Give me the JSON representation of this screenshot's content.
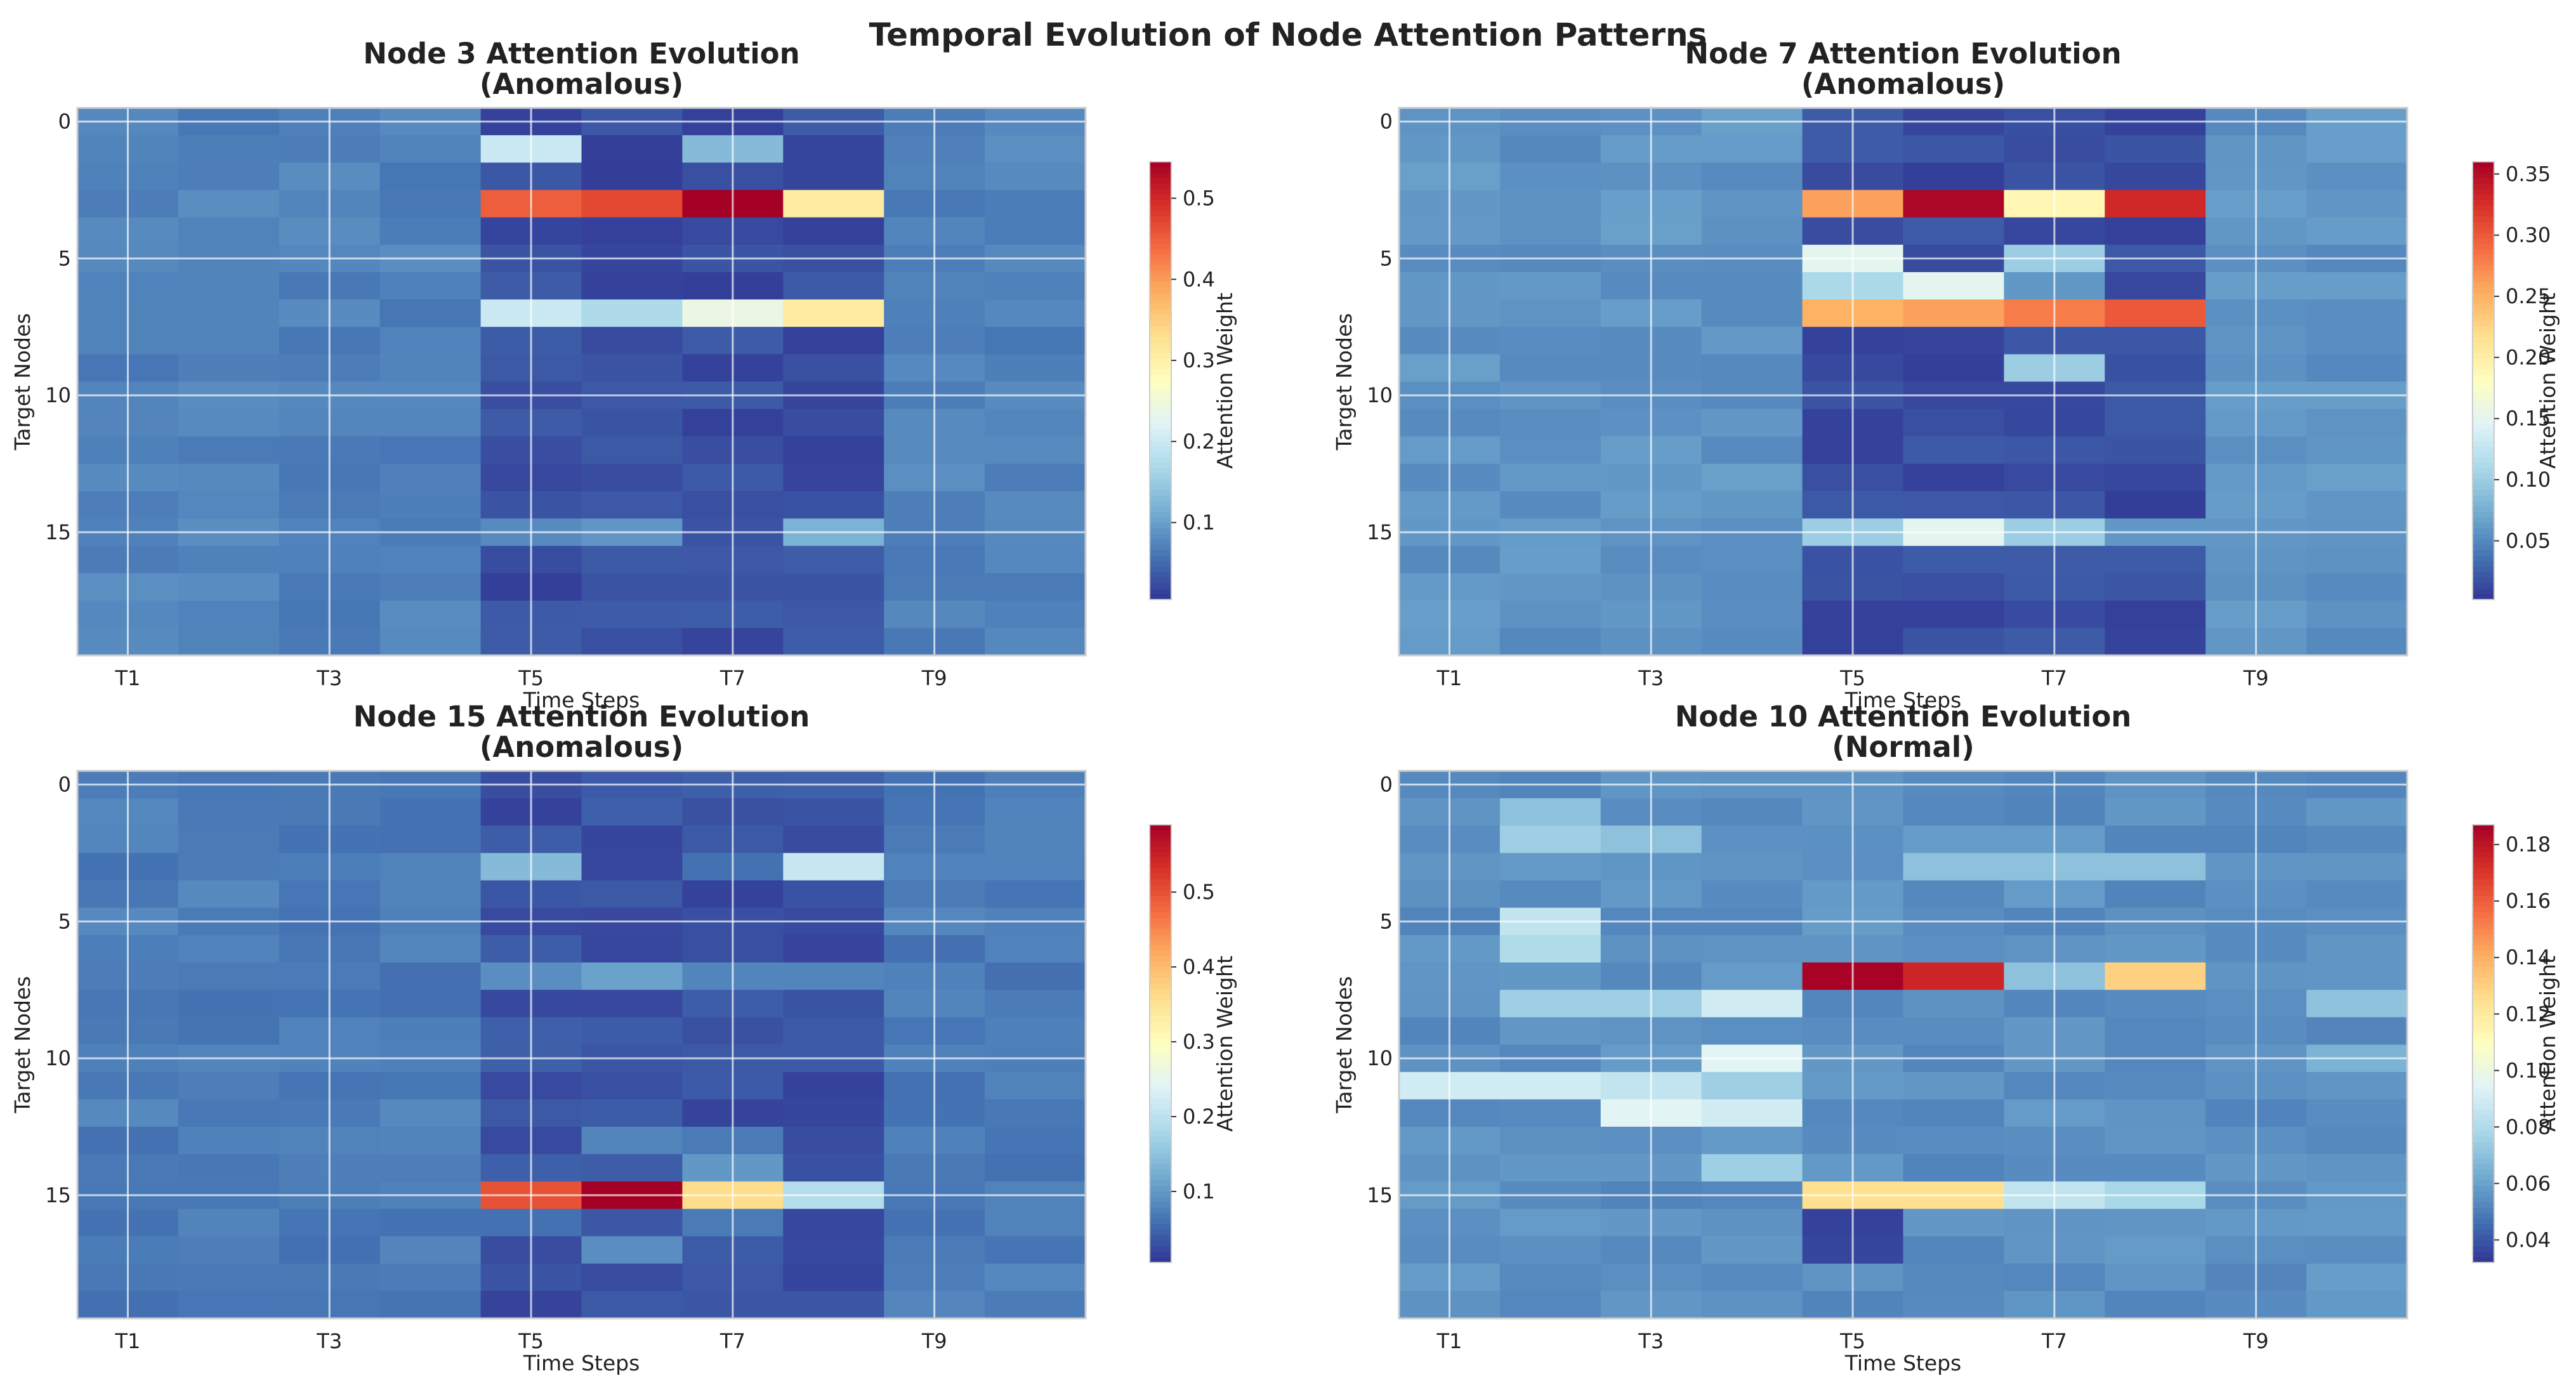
{
  "figure": {
    "title": "Temporal Evolution of Node Attention Patterns"
  },
  "chart_data": [
    {
      "type": "heatmap",
      "title": "Node 3 Attention Evolution",
      "subtitle": "(Anomalous)",
      "xlabel": "Time Steps",
      "ylabel": "Target Nodes",
      "colorbar_label": "Attention Weight",
      "x_ticks": [
        "T1",
        "T3",
        "T5",
        "T7",
        "T9"
      ],
      "y_ticks": [
        "0",
        "5",
        "10",
        "15"
      ],
      "colorbar_ticks": [
        0.1,
        0.2,
        0.3,
        0.4,
        0.5
      ],
      "colorbar_tick_labels": [
        "0.1",
        "0.2",
        "0.3",
        "0.4",
        "0.5"
      ],
      "vmin": 0.005,
      "vmax": 0.545,
      "columns": 10,
      "rows": 20,
      "base": 0.072,
      "active_columns": [
        4,
        5,
        6,
        7
      ],
      "active_base": 0.025,
      "hot_cells": [
        {
          "row": 1,
          "col": 4,
          "value": 0.2
        },
        {
          "row": 1,
          "col": 6,
          "value": 0.13
        },
        {
          "row": 3,
          "col": 4,
          "value": 0.45
        },
        {
          "row": 3,
          "col": 5,
          "value": 0.47
        },
        {
          "row": 3,
          "col": 6,
          "value": 0.545
        },
        {
          "row": 3,
          "col": 7,
          "value": 0.31
        },
        {
          "row": 7,
          "col": 4,
          "value": 0.2
        },
        {
          "row": 7,
          "col": 5,
          "value": 0.17
        },
        {
          "row": 7,
          "col": 6,
          "value": 0.24
        },
        {
          "row": 7,
          "col": 7,
          "value": 0.31
        },
        {
          "row": 15,
          "col": 4,
          "value": 0.08
        },
        {
          "row": 15,
          "col": 5,
          "value": 0.09
        },
        {
          "row": 15,
          "col": 7,
          "value": 0.12
        }
      ]
    },
    {
      "type": "heatmap",
      "title": "Node 7 Attention Evolution",
      "subtitle": "(Anomalous)",
      "xlabel": "Time Steps",
      "ylabel": "Target Nodes",
      "colorbar_label": "Attention Weight",
      "x_ticks": [
        "T1",
        "T3",
        "T5",
        "T7",
        "T9"
      ],
      "y_ticks": [
        "0",
        "5",
        "10",
        "15"
      ],
      "colorbar_ticks": [
        0.05,
        0.1,
        0.15,
        0.2,
        0.25,
        0.3,
        0.35
      ],
      "colorbar_tick_labels": [
        "0.05",
        "0.10",
        "0.15",
        "0.20",
        "0.25",
        "0.30",
        "0.35"
      ],
      "vmin": 0.002,
      "vmax": 0.36,
      "columns": 10,
      "rows": 20,
      "base": 0.058,
      "active_columns": [
        4,
        5,
        6,
        7
      ],
      "active_base": 0.015,
      "hot_cells": [
        {
          "row": 3,
          "col": 4,
          "value": 0.26
        },
        {
          "row": 3,
          "col": 5,
          "value": 0.355
        },
        {
          "row": 3,
          "col": 6,
          "value": 0.19
        },
        {
          "row": 3,
          "col": 7,
          "value": 0.33
        },
        {
          "row": 5,
          "col": 4,
          "value": 0.15
        },
        {
          "row": 5,
          "col": 6,
          "value": 0.1
        },
        {
          "row": 6,
          "col": 4,
          "value": 0.11
        },
        {
          "row": 6,
          "col": 5,
          "value": 0.15
        },
        {
          "row": 6,
          "col": 6,
          "value": 0.06
        },
        {
          "row": 7,
          "col": 4,
          "value": 0.25
        },
        {
          "row": 7,
          "col": 5,
          "value": 0.26
        },
        {
          "row": 7,
          "col": 6,
          "value": 0.28
        },
        {
          "row": 7,
          "col": 7,
          "value": 0.3
        },
        {
          "row": 9,
          "col": 6,
          "value": 0.1
        },
        {
          "row": 15,
          "col": 4,
          "value": 0.1
        },
        {
          "row": 15,
          "col": 5,
          "value": 0.15
        },
        {
          "row": 15,
          "col": 6,
          "value": 0.1
        },
        {
          "row": 15,
          "col": 7,
          "value": 0.06
        }
      ]
    },
    {
      "type": "heatmap",
      "title": "Node 15 Attention Evolution",
      "subtitle": "(Anomalous)",
      "xlabel": "Time Steps",
      "ylabel": "Target Nodes",
      "colorbar_label": "Attention Weight",
      "x_ticks": [
        "T1",
        "T3",
        "T5",
        "T7",
        "T9"
      ],
      "y_ticks": [
        "0",
        "5",
        "10",
        "15"
      ],
      "colorbar_ticks": [
        0.1,
        0.2,
        0.3,
        0.4,
        0.5
      ],
      "colorbar_tick_labels": [
        "0.1",
        "0.2",
        "0.3",
        "0.4",
        "0.5"
      ],
      "vmin": 0.005,
      "vmax": 0.59,
      "columns": 10,
      "rows": 20,
      "base": 0.072,
      "active_columns": [
        4,
        5,
        6,
        7
      ],
      "active_base": 0.03,
      "hot_cells": [
        {
          "row": 3,
          "col": 4,
          "value": 0.14
        },
        {
          "row": 3,
          "col": 6,
          "value": 0.06
        },
        {
          "row": 3,
          "col": 7,
          "value": 0.21
        },
        {
          "row": 7,
          "col": 4,
          "value": 0.09
        },
        {
          "row": 7,
          "col": 5,
          "value": 0.11
        },
        {
          "row": 7,
          "col": 6,
          "value": 0.08
        },
        {
          "row": 7,
          "col": 7,
          "value": 0.08
        },
        {
          "row": 13,
          "col": 5,
          "value": 0.08
        },
        {
          "row": 13,
          "col": 6,
          "value": 0.07
        },
        {
          "row": 14,
          "col": 6,
          "value": 0.1
        },
        {
          "row": 15,
          "col": 4,
          "value": 0.5
        },
        {
          "row": 15,
          "col": 5,
          "value": 0.59
        },
        {
          "row": 15,
          "col": 6,
          "value": 0.36
        },
        {
          "row": 15,
          "col": 7,
          "value": 0.19
        },
        {
          "row": 16,
          "col": 4,
          "value": 0.06
        },
        {
          "row": 16,
          "col": 6,
          "value": 0.07
        },
        {
          "row": 17,
          "col": 5,
          "value": 0.09
        }
      ]
    },
    {
      "type": "heatmap",
      "title": "Node 10 Attention Evolution",
      "subtitle": "(Normal)",
      "xlabel": "Time Steps",
      "ylabel": "Target Nodes",
      "colorbar_label": "Attention Weight",
      "x_ticks": [
        "T1",
        "T3",
        "T5",
        "T7",
        "T9"
      ],
      "y_ticks": [
        "0",
        "5",
        "10",
        "15"
      ],
      "colorbar_ticks": [
        0.04,
        0.06,
        0.08,
        0.1,
        0.12,
        0.14,
        0.16,
        0.18
      ],
      "colorbar_tick_labels": [
        "0.04",
        "0.06",
        "0.08",
        "0.10",
        "0.12",
        "0.14",
        "0.16",
        "0.18"
      ],
      "vmin": 0.032,
      "vmax": 0.187,
      "columns": 10,
      "rows": 20,
      "base": 0.055,
      "active_columns": [],
      "active_base": 0.055,
      "hot_cells": [
        {
          "row": 1,
          "col": 1,
          "value": 0.07
        },
        {
          "row": 2,
          "col": 1,
          "value": 0.075
        },
        {
          "row": 2,
          "col": 2,
          "value": 0.07
        },
        {
          "row": 3,
          "col": 5,
          "value": 0.07
        },
        {
          "row": 3,
          "col": 6,
          "value": 0.07
        },
        {
          "row": 3,
          "col": 7,
          "value": 0.07
        },
        {
          "row": 5,
          "col": 1,
          "value": 0.085
        },
        {
          "row": 6,
          "col": 1,
          "value": 0.08
        },
        {
          "row": 7,
          "col": 4,
          "value": 0.186
        },
        {
          "row": 7,
          "col": 5,
          "value": 0.175
        },
        {
          "row": 7,
          "col": 6,
          "value": 0.07
        },
        {
          "row": 7,
          "col": 7,
          "value": 0.13
        },
        {
          "row": 8,
          "col": 3,
          "value": 0.09
        },
        {
          "row": 8,
          "col": 1,
          "value": 0.075
        },
        {
          "row": 8,
          "col": 2,
          "value": 0.075
        },
        {
          "row": 8,
          "col": 9,
          "value": 0.07
        },
        {
          "row": 10,
          "col": 3,
          "value": 0.095
        },
        {
          "row": 10,
          "col": 9,
          "value": 0.065
        },
        {
          "row": 11,
          "col": 0,
          "value": 0.09
        },
        {
          "row": 11,
          "col": 1,
          "value": 0.09
        },
        {
          "row": 11,
          "col": 2,
          "value": 0.085
        },
        {
          "row": 11,
          "col": 3,
          "value": 0.075
        },
        {
          "row": 12,
          "col": 2,
          "value": 0.095
        },
        {
          "row": 12,
          "col": 3,
          "value": 0.09
        },
        {
          "row": 14,
          "col": 3,
          "value": 0.075
        },
        {
          "row": 15,
          "col": 4,
          "value": 0.125
        },
        {
          "row": 15,
          "col": 5,
          "value": 0.125
        },
        {
          "row": 15,
          "col": 6,
          "value": 0.085
        },
        {
          "row": 15,
          "col": 7,
          "value": 0.078
        },
        {
          "row": 16,
          "col": 4,
          "value": 0.035
        },
        {
          "row": 17,
          "col": 4,
          "value": 0.036
        }
      ]
    }
  ]
}
